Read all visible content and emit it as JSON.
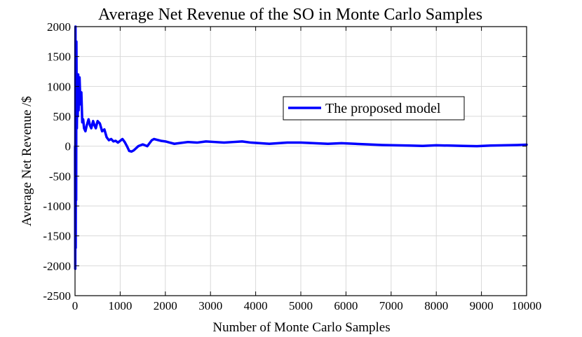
{
  "chart_data": {
    "type": "line",
    "title": "Average Net Revenue of the SO in Monte Carlo Samples",
    "xlabel": "Number of Monte Carlo Samples",
    "ylabel": "Average Net Revenue /$",
    "xlim": [
      0,
      10000
    ],
    "ylim": [
      -2500,
      2000
    ],
    "grid": true,
    "x_ticks": [
      0,
      1000,
      2000,
      3000,
      4000,
      5000,
      6000,
      7000,
      8000,
      9000,
      10000
    ],
    "y_ticks": [
      2000,
      1500,
      1000,
      500,
      0,
      -500,
      -1000,
      -1500,
      -2000,
      -2500
    ],
    "legend": {
      "placement": "right-upper-middle",
      "entries": [
        "The proposed model"
      ]
    },
    "series": [
      {
        "name": "The proposed model",
        "color": "#0000ff",
        "x": [
          1,
          5,
          10,
          15,
          20,
          25,
          30,
          40,
          50,
          60,
          70,
          80,
          100,
          120,
          140,
          160,
          180,
          200,
          230,
          260,
          300,
          330,
          360,
          400,
          430,
          460,
          500,
          550,
          600,
          650,
          700,
          750,
          800,
          850,
          900,
          950,
          1000,
          1050,
          1100,
          1150,
          1200,
          1250,
          1300,
          1400,
          1500,
          1600,
          1700,
          1750,
          1800,
          1900,
          2000,
          2100,
          2200,
          2300,
          2500,
          2700,
          2900,
          3100,
          3300,
          3500,
          3700,
          3900,
          4100,
          4300,
          4500,
          4700,
          5000,
          5300,
          5600,
          5900,
          6200,
          6500,
          6800,
          7100,
          7400,
          7700,
          8000,
          8300,
          8600,
          8900,
          9200,
          9500,
          9800,
          10000
        ],
        "values": [
          0,
          -2050,
          2000,
          -1700,
          1500,
          -900,
          1750,
          300,
          1000,
          500,
          1200,
          600,
          1150,
          700,
          900,
          400,
          450,
          300,
          250,
          350,
          450,
          350,
          300,
          420,
          350,
          300,
          420,
          380,
          250,
          280,
          150,
          100,
          120,
          80,
          90,
          60,
          90,
          120,
          70,
          0,
          -80,
          -90,
          -70,
          0,
          30,
          0,
          100,
          120,
          110,
          90,
          80,
          60,
          40,
          50,
          70,
          60,
          80,
          70,
          60,
          70,
          80,
          60,
          50,
          40,
          50,
          60,
          60,
          50,
          40,
          50,
          40,
          30,
          20,
          15,
          10,
          5,
          15,
          10,
          5,
          0,
          10,
          15,
          20,
          25
        ]
      }
    ]
  }
}
